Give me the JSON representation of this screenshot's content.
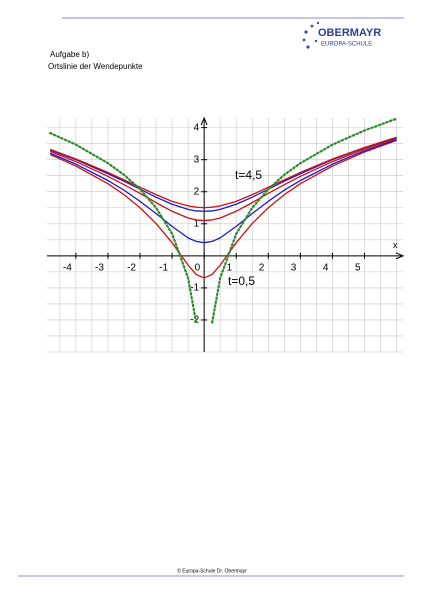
{
  "header": {
    "logo_name": "OBERMAYR",
    "logo_sub": "EUROPA-SCHULE"
  },
  "task": {
    "label": "Aufgabe b)",
    "title": "Ortslinie der Wendepunkte"
  },
  "chart_data": {
    "type": "line",
    "x_label": "x",
    "annotations": [
      "t=4,5",
      "t=0,5"
    ],
    "x": [
      -4.8,
      -4,
      -3,
      -2.5,
      -2,
      -1.5,
      -1,
      -0.5,
      -0.25,
      0,
      0.25,
      0.5,
      1,
      1.5,
      2,
      2.5,
      3,
      4,
      5,
      6
    ],
    "series": [
      {
        "color": "#cc1111",
        "values": [
          3.16,
          2.8,
          2.25,
          1.91,
          1.5,
          1.01,
          0.41,
          -0.29,
          -0.58,
          -0.69,
          -0.58,
          -0.29,
          0.41,
          1.01,
          1.5,
          1.91,
          2.25,
          2.8,
          3.24,
          3.6
        ]
      },
      {
        "color": "#1a1acc",
        "values": [
          3.2,
          2.86,
          2.35,
          2.05,
          1.7,
          1.32,
          0.92,
          0.56,
          0.45,
          0.41,
          0.45,
          0.56,
          0.92,
          1.32,
          1.7,
          2.05,
          2.35,
          2.86,
          3.28,
          3.62
        ]
      },
      {
        "color": "#cc1111",
        "values": [
          3.26,
          2.94,
          2.48,
          2.22,
          1.95,
          1.66,
          1.39,
          1.18,
          1.12,
          1.1,
          1.12,
          1.18,
          1.39,
          1.66,
          1.95,
          2.22,
          2.48,
          2.94,
          3.33,
          3.66
        ]
      },
      {
        "color": "#1a1acc",
        "values": [
          3.3,
          3.0,
          2.56,
          2.33,
          2.08,
          1.83,
          1.61,
          1.45,
          1.4,
          1.39,
          1.4,
          1.45,
          1.61,
          1.83,
          2.08,
          2.33,
          2.56,
          3.0,
          3.37,
          3.69
        ]
      },
      {
        "color": "#cc1111",
        "values": [
          3.32,
          3.02,
          2.6,
          2.37,
          2.14,
          1.91,
          1.7,
          1.56,
          1.52,
          1.5,
          1.52,
          1.56,
          1.7,
          1.91,
          2.14,
          2.37,
          2.6,
          3.02,
          3.38,
          3.7
        ]
      },
      {
        "color": "#2e8b2e",
        "dash": "dotted",
        "values": [
          3.83,
          3.47,
          2.89,
          2.53,
          2.08,
          1.5,
          0.69,
          -0.69,
          -2.08,
          null,
          -2.08,
          -0.69,
          0.69,
          1.5,
          2.08,
          2.53,
          2.89,
          3.47,
          3.91,
          4.28
        ]
      }
    ],
    "xlim": [
      -4.9,
      6.2
    ],
    "ylim": [
      -3,
      4.3
    ],
    "xticks": [
      -4,
      -3,
      -2,
      -1,
      0,
      1,
      2,
      3,
      4,
      5
    ],
    "yticks": [
      -2,
      -1,
      1,
      2,
      3,
      4
    ],
    "grid": true
  },
  "footer": "© Europa-Schule Dr. Obermayr"
}
